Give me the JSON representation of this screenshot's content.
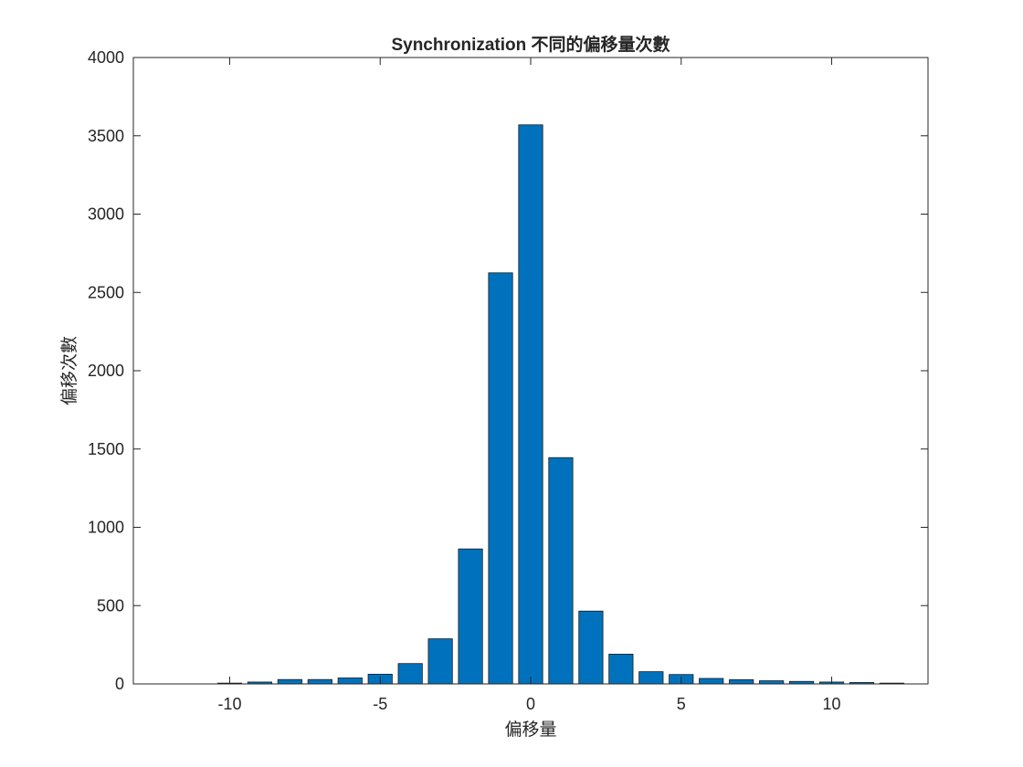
{
  "chart_data": {
    "type": "bar",
    "title": "Synchronization 不同的偏移量次數",
    "xlabel": "偏移量",
    "ylabel": "偏移次數",
    "x": [
      -11,
      -10,
      -9,
      -8,
      -7,
      -6,
      -5,
      -4,
      -3,
      -2,
      -1,
      0,
      1,
      2,
      3,
      4,
      5,
      6,
      7,
      8,
      9,
      10,
      11,
      12
    ],
    "values": [
      0,
      5,
      12,
      28,
      28,
      38,
      62,
      130,
      288,
      862,
      2625,
      3570,
      1445,
      465,
      190,
      78,
      60,
      35,
      27,
      20,
      16,
      12,
      9,
      5
    ],
    "xlim": [
      -13.2,
      13.2
    ],
    "ylim": [
      0,
      4000
    ],
    "xticks": [
      -10,
      -5,
      0,
      5,
      10
    ],
    "xtick_labels": [
      "-10",
      "-5",
      "0",
      "5",
      "10"
    ],
    "yticks": [
      0,
      500,
      1000,
      1500,
      2000,
      2500,
      3000,
      3500,
      4000
    ],
    "ytick_labels": [
      "0",
      "500",
      "1000",
      "1500",
      "2000",
      "2500",
      "3000",
      "3500",
      "4000"
    ],
    "bar_color": "#0072BD",
    "grid": false,
    "legend": "none"
  }
}
